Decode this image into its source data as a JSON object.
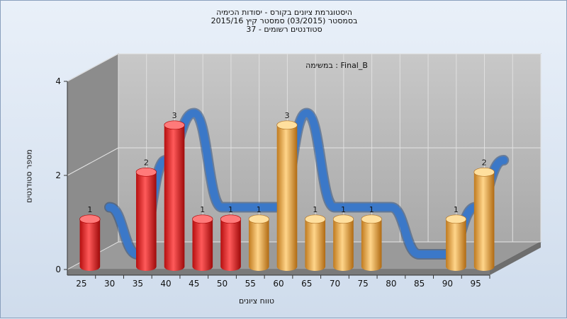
{
  "titles": {
    "line1": "היסטוגרמת ציונים בקורס - יסודות הכימיה",
    "line2": "בסמסטר  (03/2015)  סמסטר קיץ 2015/16",
    "line3": "סטודנטים רשומים - 37"
  },
  "chart_data": {
    "type": "bar",
    "subtitle": "במשימה : Final_B",
    "xlabel": "טווח ציונים",
    "ylabel": "מספר סטודנטים",
    "ylim": [
      0,
      4
    ],
    "yticks": [
      0,
      2,
      4
    ],
    "categories": [
      "25",
      "30",
      "35",
      "40",
      "45",
      "50",
      "55",
      "60",
      "65",
      "70",
      "75",
      "80",
      "85",
      "90",
      "95"
    ],
    "values": [
      1,
      0,
      2,
      3,
      1,
      1,
      1,
      3,
      1,
      1,
      1,
      0,
      0,
      1,
      2
    ],
    "data_labels": [
      "1",
      "",
      "2",
      "3",
      "1",
      "1",
      "1",
      "3",
      "1",
      "1",
      "1",
      "",
      "",
      "1",
      "2"
    ],
    "bar_colors": [
      "#e31b1b",
      "#e31b1b",
      "#e31b1b",
      "#e31b1b",
      "#e31b1b",
      "#e31b1b",
      "#e8a840",
      "#e8a840",
      "#e8a840",
      "#e8a840",
      "#e8a840",
      "#e8a840",
      "#e8a840",
      "#e8a840",
      "#e8a840"
    ],
    "trend_color": "#3b78c8",
    "grid": true
  }
}
